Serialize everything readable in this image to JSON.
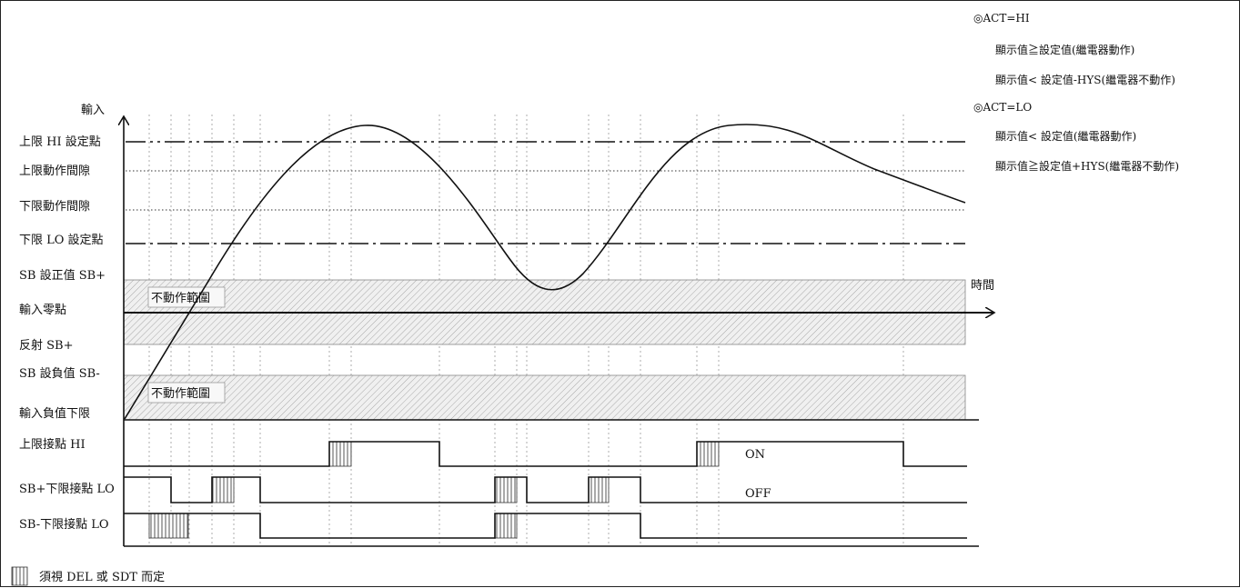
{
  "axes": {
    "y_title": "輸入",
    "x_title": "時間"
  },
  "levels": {
    "hi_set": "上限 HI 設定點",
    "hi_gap": "上限動作間隙",
    "lo_gap": "下限動作間隙",
    "lo_set": "下限 LO 設定點",
    "sb_plus": "SB 設正值 SB+",
    "zero": "輸入零點",
    "reflect": "反射 SB+",
    "sb_minus": "SB 設負值 SB-",
    "neg_limit": "輸入負值下限"
  },
  "bands": {
    "upper_label": "不動作範圍",
    "lower_label": "不動作範圍"
  },
  "contacts": {
    "hi": "上限接點 HI",
    "lo_plus": "SB+下限接點 LO",
    "lo_minus": "SB-下限接點 LO",
    "on_label": "ON",
    "off_label": "OFF"
  },
  "notes": {
    "act_hi_title": "◎ACT=HI",
    "act_hi_line1": "顯示值≧設定值(繼電器動作)",
    "act_hi_line2": "顯示值< 設定值-HYS(繼電器不動作)",
    "act_lo_title": "◎ACT=LO",
    "act_lo_line1": "顯示值< 設定值(繼電器動作)",
    "act_lo_line2": "顯示值≧設定值+HYS(繼電器不動作)"
  },
  "legend": {
    "text": "須視 DEL 或 SDT 而定"
  },
  "colors": {
    "line": "#111111",
    "band_hatch": "#bdbdbd",
    "grid": "#9a9a9a"
  }
}
